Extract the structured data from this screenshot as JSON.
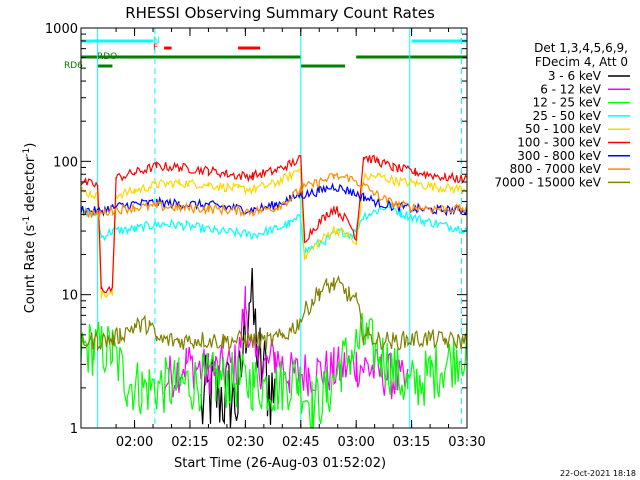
{
  "chart_data": {
    "type": "line",
    "title": "RHESSI Observing Summary Count Rates",
    "xlabel": "Start Time (26-Aug-03 01:52:02)",
    "ylabel_main": "Count Rate (s",
    "ylabel_sup1": "-1",
    "ylabel_mid": " detector",
    "ylabel_sup2": "-1",
    "ylabel_end": ")",
    "y_scale": "log",
    "ylim": [
      1,
      1000
    ],
    "xlim_minutes": [
      -6.5,
      98
    ],
    "x_ticks": [
      {
        "minutes": 8,
        "label": "02:00"
      },
      {
        "minutes": 23,
        "label": "02:15"
      },
      {
        "minutes": 38,
        "label": "02:30"
      },
      {
        "minutes": 53,
        "label": "02:45"
      },
      {
        "minutes": 68,
        "label": "03:00"
      },
      {
        "minutes": 83,
        "label": "03:15"
      },
      {
        "minutes": 98,
        "label": "03:30"
      }
    ],
    "y_ticks": [
      {
        "value": 1,
        "label": "1"
      },
      {
        "value": 10,
        "label": "10"
      },
      {
        "value": 100,
        "label": "100"
      },
      {
        "value": 1000,
        "label": "1000"
      }
    ],
    "legend_header": [
      "Det 1,3,4,5,6,9,",
      "FDecim 4, Att 0"
    ],
    "legend_position": "right",
    "series": [
      {
        "name": "3 - 6 keV",
        "color": "#000000",
        "times": [
          -6.5,
          18,
          26,
          29,
          36,
          39,
          42,
          46,
          52,
          58,
          66,
          72,
          78,
          84,
          90,
          98
        ],
        "values": [
          null,
          null,
          1.4,
          1.9,
          1.6,
          10.5,
          3.1,
          1.7,
          null,
          null,
          null,
          null,
          null,
          null,
          null,
          null
        ]
      },
      {
        "name": "6 - 12 keV",
        "color": "#ff00ff",
        "times": [
          -6.5,
          12,
          16,
          22,
          28,
          36,
          38,
          40,
          43,
          46,
          50,
          55,
          62,
          68,
          72,
          78,
          82,
          98
        ],
        "values": [
          null,
          null,
          2.2,
          3.1,
          2.6,
          3.0,
          9.0,
          3.3,
          2.8,
          3.5,
          2.5,
          2.6,
          2.7,
          3.0,
          2.8,
          2.4,
          2.0,
          null
        ]
      },
      {
        "name": "12 - 25 keV",
        "color": "#00ff00",
        "times": [
          -6.5,
          -3,
          2,
          6,
          10,
          20,
          30,
          40,
          46,
          52,
          56,
          60,
          64,
          70,
          76,
          82,
          88,
          98
        ],
        "values": [
          3.9,
          4.0,
          3.8,
          2.2,
          2.0,
          2.1,
          2.3,
          2.2,
          2.0,
          2.4,
          1.5,
          1.8,
          3.0,
          4.7,
          3.2,
          2.0,
          2.5,
          4.0
        ]
      },
      {
        "name": "25 - 50 keV",
        "color": "#00ffff",
        "times": [
          -6.5,
          -2,
          -1,
          2,
          8,
          12,
          16,
          22,
          30,
          36,
          40,
          46,
          50,
          53,
          54,
          60,
          64,
          67,
          70,
          74,
          77,
          80,
          86,
          94,
          98
        ],
        "values": [
          42,
          40,
          27,
          30,
          31,
          33,
          34,
          33,
          30,
          29,
          28,
          31,
          34,
          38,
          21,
          26,
          30,
          28,
          39,
          43,
          47,
          41,
          36,
          32,
          31
        ]
      },
      {
        "name": "50 - 100 keV",
        "color": "#ffd700",
        "times": [
          -6.5,
          -2,
          -1,
          2,
          3,
          8,
          14,
          20,
          28,
          36,
          40,
          46,
          50,
          53,
          54,
          58,
          62,
          66,
          68,
          70,
          74,
          78,
          84,
          92,
          98
        ],
        "values": [
          60,
          55,
          10,
          10,
          56,
          60,
          67,
          69,
          67,
          62,
          62,
          68,
          78,
          89,
          19,
          25,
          31,
          28,
          23,
          75,
          78,
          72,
          68,
          63,
          62
        ]
      },
      {
        "name": "100 - 300 keV",
        "color": "#ff0000",
        "times": [
          -6.5,
          -2,
          -1,
          2,
          3,
          8,
          14,
          20,
          28,
          36,
          40,
          46,
          50,
          53,
          54,
          58,
          62,
          66,
          68,
          70,
          74,
          78,
          84,
          92,
          98
        ],
        "values": [
          70,
          66,
          11,
          11,
          75,
          82,
          92,
          90,
          85,
          78,
          78,
          85,
          95,
          105,
          26,
          35,
          45,
          35,
          27,
          108,
          100,
          90,
          83,
          76,
          73
        ]
      },
      {
        "name": "300 - 800 keV",
        "color": "#0000ff",
        "times": [
          -6.5,
          -2,
          2,
          8,
          14,
          20,
          28,
          34,
          40,
          46,
          50,
          53,
          54,
          58,
          62,
          66,
          70,
          74,
          78,
          84,
          90,
          98
        ],
        "values": [
          44,
          42,
          45,
          48,
          49,
          48,
          47,
          45,
          43,
          47,
          52,
          57,
          56,
          60,
          65,
          60,
          54,
          49,
          46,
          44,
          43,
          43
        ]
      },
      {
        "name": "800 - 7000 keV",
        "color": "#ff8c00",
        "times": [
          -6.5,
          -2,
          2,
          8,
          14,
          20,
          28,
          34,
          40,
          46,
          50,
          53,
          58,
          62,
          66,
          70,
          74,
          78,
          84,
          90,
          98
        ],
        "values": [
          42,
          40,
          43,
          45,
          46,
          45,
          44,
          43,
          42,
          45,
          52,
          62,
          70,
          77,
          75,
          66,
          55,
          48,
          45,
          44,
          44
        ]
      },
      {
        "name": "7000 - 15000 keV",
        "color": "#808000",
        "times": [
          -6.5,
          -2,
          2,
          4,
          8,
          12,
          14,
          20,
          26,
          32,
          38,
          44,
          48,
          52,
          56,
          58,
          60,
          62,
          64,
          66,
          68,
          70,
          74,
          78,
          82,
          88,
          92,
          98
        ],
        "values": [
          4.5,
          4.5,
          4.6,
          5.0,
          5.8,
          6.0,
          4.6,
          4.5,
          4.6,
          4.5,
          4.6,
          4.5,
          4.8,
          6.0,
          9.0,
          10.5,
          11.5,
          12.0,
          11.3,
          10.0,
          9.0,
          5.0,
          4.6,
          4.5,
          4.6,
          4.7,
          4.5,
          4.5
        ]
      }
    ],
    "flags": [
      {
        "label": "N",
        "color": "#00ffff",
        "segments": [
          [
            -6.5,
            13
          ],
          [
            83,
            98
          ]
        ]
      },
      {
        "label": "F",
        "color": "#ff0000",
        "segments": [
          [
            16,
            18
          ],
          [
            36,
            42
          ]
        ]
      },
      {
        "label": "RDO",
        "color": "#008000",
        "segments": [
          [
            -6.5,
            53
          ],
          [
            68,
            98
          ]
        ]
      },
      {
        "label": "RD6",
        "color": "#008000",
        "segments": [
          [
            -2,
            2
          ],
          [
            53,
            65
          ]
        ]
      }
    ],
    "vertical_lines": [
      {
        "minutes": -2,
        "color": "#00ffff",
        "style": "solid"
      },
      {
        "minutes": 13.5,
        "color": "#00ffff",
        "style": "dashed"
      },
      {
        "minutes": 53,
        "color": "#00ffff",
        "style": "solid"
      },
      {
        "minutes": 82.5,
        "color": "#00ffff",
        "style": "solid"
      },
      {
        "minutes": 96.5,
        "color": "#00ffff",
        "style": "dashed"
      }
    ]
  },
  "footer_date": "22-Oct-2021 18:18"
}
